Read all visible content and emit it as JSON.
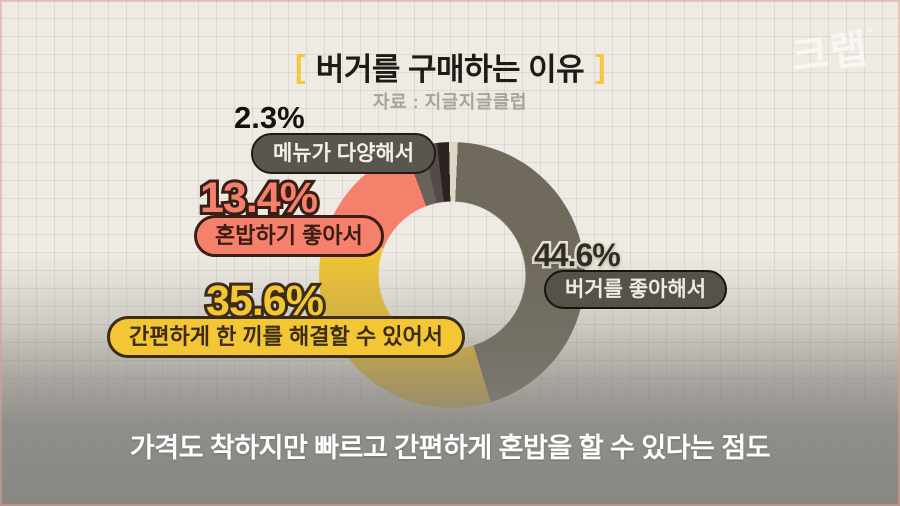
{
  "header": {
    "bracket_left": "[",
    "bracket_right": "]"
  },
  "chart_data": {
    "type": "pie",
    "variant": "donut",
    "title": "버거를 구매하는 이유",
    "source": "자료 : 지글지글클럽",
    "start_angle_deg": 2.5,
    "inner_radius_ratio": 0.56,
    "legend_position": "callouts",
    "segments": [
      {
        "label": "버거를 좋아해서",
        "value": 44.6,
        "pct_label": "44.6%",
        "color": "#6f6a5c"
      },
      {
        "label": "간편하게 한 끼를 해결할 수 있어서",
        "value": 35.6,
        "pct_label": "35.6%",
        "color": "#f0c433"
      },
      {
        "label": "혼밥하기 좋아서",
        "value": 13.4,
        "pct_label": "13.4%",
        "color": "#f5806c"
      },
      {
        "label": "메뉴가 다양해서",
        "value": 2.3,
        "pct_label": "2.3%",
        "color": "#676255"
      },
      {
        "label": "",
        "value": 1.6,
        "pct_label": "",
        "color": "#564a49"
      },
      {
        "label": "",
        "value": 1.45,
        "pct_label": "",
        "color": "#2b2224"
      },
      {
        "label": "",
        "value": 1.05,
        "pct_label": "",
        "color": "#ddd8c6"
      }
    ]
  },
  "caption": "가격도 착하지만 빠르고 간편하게 혼밥을 할 수 있다는 점도",
  "logo": {
    "text": "크랩",
    "mark": "°"
  },
  "colors": {
    "background": "#edebe4",
    "grid_line": "#b6ac9c",
    "title_bracket": "#f8c63d",
    "title_text": "#1e1a16",
    "source_text": "#a9a399",
    "segment_like_burger": "#6f6a5c",
    "segment_quick_meal": "#f0c433",
    "segment_solo_meal": "#f5806c",
    "segment_menu_variety": "#676255",
    "overlay_gray": "#85837f",
    "caption_text": "#ffffff",
    "watermark": "#fcfaf6",
    "frame_edge_pink": "#e7a096"
  }
}
